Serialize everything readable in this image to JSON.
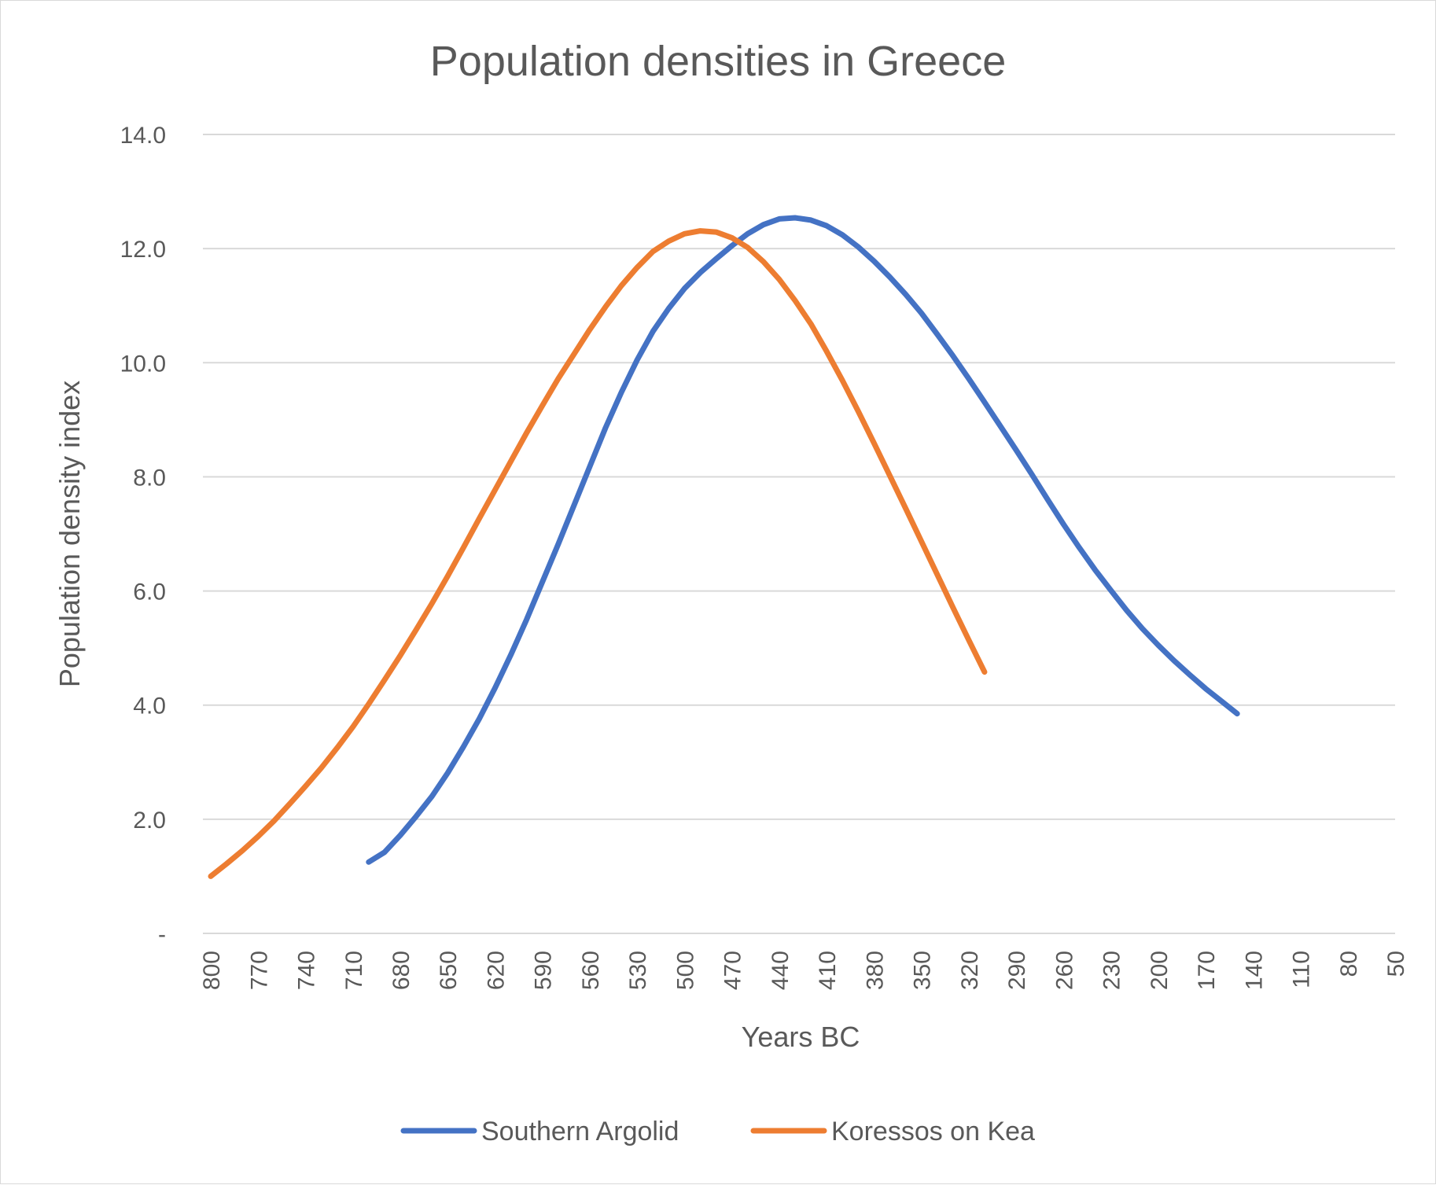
{
  "chart_data": {
    "type": "line",
    "title": "Population densities in Greece",
    "xlabel": "Years BC",
    "ylabel": "Population density index",
    "ylim": [
      0,
      14
    ],
    "yticks": [
      "-",
      "2.0",
      "4.0",
      "6.0",
      "8.0",
      "10.0",
      "12.0",
      "14.0"
    ],
    "grid": true,
    "legend_position": "bottom",
    "categories": [
      "800",
      "790",
      "780",
      "770",
      "760",
      "750",
      "740",
      "730",
      "720",
      "710",
      "700",
      "690",
      "680",
      "670",
      "660",
      "650",
      "640",
      "630",
      "620",
      "610",
      "600",
      "590",
      "580",
      "570",
      "560",
      "550",
      "540",
      "530",
      "520",
      "510",
      "500",
      "490",
      "480",
      "470",
      "460",
      "450",
      "440",
      "430",
      "420",
      "410",
      "400",
      "390",
      "380",
      "370",
      "360",
      "350",
      "340",
      "330",
      "320",
      "310",
      "300",
      "290",
      "280",
      "270",
      "260",
      "250",
      "240",
      "230",
      "220",
      "210",
      "200",
      "190",
      "180",
      "170",
      "160",
      "150",
      "140",
      "130",
      "120",
      "110",
      "100",
      "90",
      "80",
      "70",
      "60",
      "50"
    ],
    "xtick_labels": [
      "800",
      "770",
      "740",
      "710",
      "680",
      "650",
      "620",
      "590",
      "560",
      "530",
      "500",
      "470",
      "440",
      "410",
      "380",
      "350",
      "320",
      "290",
      "260",
      "230",
      "200",
      "170",
      "140",
      "110",
      "80",
      "50"
    ],
    "series": [
      {
        "name": "Southern Argolid",
        "color": "#4472c4",
        "values": [
          null,
          null,
          null,
          null,
          null,
          null,
          null,
          null,
          null,
          null,
          1.25,
          1.42,
          1.72,
          2.05,
          2.4,
          2.81,
          3.27,
          3.76,
          4.3,
          4.88,
          5.5,
          6.16,
          6.82,
          7.5,
          8.18,
          8.86,
          9.48,
          10.05,
          10.55,
          10.95,
          11.3,
          11.58,
          11.82,
          12.05,
          12.26,
          12.42,
          12.52,
          12.54,
          12.5,
          12.4,
          12.24,
          12.03,
          11.78,
          11.5,
          11.2,
          10.87,
          10.5,
          10.12,
          9.72,
          9.31,
          8.89,
          8.47,
          8.04,
          7.6,
          7.17,
          6.76,
          6.37,
          6.01,
          5.66,
          5.34,
          5.05,
          4.78,
          4.53,
          4.29,
          4.07,
          3.85,
          null,
          null,
          null,
          null,
          null,
          null,
          null,
          null,
          null,
          null
        ]
      },
      {
        "name": "Koressos on Kea",
        "color": "#ed7d31",
        "values": [
          1.0,
          1.22,
          1.45,
          1.7,
          1.97,
          2.27,
          2.58,
          2.9,
          3.25,
          3.62,
          4.02,
          4.44,
          4.87,
          5.32,
          5.78,
          6.26,
          6.76,
          7.27,
          7.77,
          8.27,
          8.77,
          9.25,
          9.72,
          10.15,
          10.58,
          10.98,
          11.35,
          11.67,
          11.95,
          12.13,
          12.26,
          12.31,
          12.29,
          12.19,
          12.02,
          11.77,
          11.46,
          11.09,
          10.68,
          10.2,
          9.69,
          9.15,
          8.59,
          8.02,
          7.45,
          6.87,
          6.29,
          5.71,
          5.14,
          4.58,
          null,
          null,
          null,
          null,
          null,
          null,
          null,
          null,
          null,
          null,
          null,
          null,
          null,
          null,
          null,
          null,
          null,
          null,
          null,
          null,
          null,
          null,
          null,
          null,
          null,
          null
        ]
      }
    ]
  }
}
